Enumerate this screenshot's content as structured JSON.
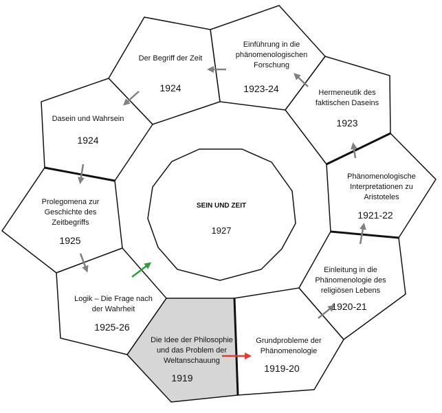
{
  "center": {
    "title": "SEIN UND ZEIT",
    "year": "1927"
  },
  "segments": [
    {
      "id": "idee",
      "title": "Die Idee der Philosophie\nund das Problem der\nWeltanschauung",
      "year": "1919",
      "fill": "#d6d6d6"
    },
    {
      "id": "grundprobleme",
      "title": "Grundprobleme der\nPhänomenologie",
      "year": "1919-20"
    },
    {
      "id": "einleitung",
      "title": "Einleitung in die\nPhänomenologie des\nreligiösen Lebens",
      "year": "1920-21"
    },
    {
      "id": "aristoteles",
      "title": "Phänomenologische\nInterpretationen zu\nAristoteles",
      "year": "1921-22"
    },
    {
      "id": "hermeneutik",
      "title": "Hermeneutik des\nfaktischen Daseins",
      "year": "1923"
    },
    {
      "id": "einfuehrung",
      "title": "Einführung in die\nphänomenologischen\nForschung",
      "year": "1923-24"
    },
    {
      "id": "begriff",
      "title": "Der Begriff der Zeit",
      "year": "1924"
    },
    {
      "id": "dasein",
      "title": "Dasein und Wahrsein",
      "year": "1924"
    },
    {
      "id": "prolegomena",
      "title": "Prolegomena zur\nGeschichte des\nZeitbegriffs",
      "year": "1925"
    },
    {
      "id": "logik",
      "title": "Logik – Die Frage nach\nder Wahrheit",
      "year": "1925-26"
    }
  ],
  "colors": {
    "start_arrow": "#e8392c",
    "end_arrow": "#2e9e3a",
    "step_arrow": "#808080"
  }
}
